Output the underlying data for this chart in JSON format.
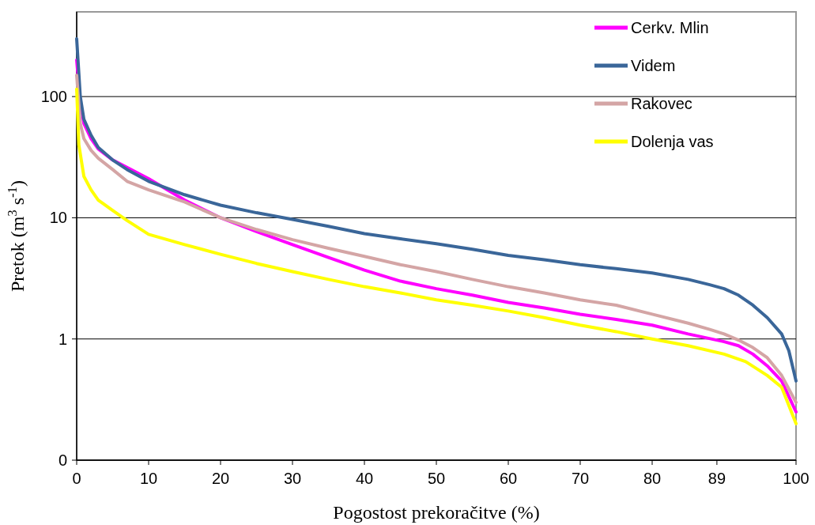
{
  "chart_data": {
    "type": "line",
    "xlabel": "Pogostost prekoračitve (%)",
    "ylabel": "Pretok  (m$^{3}$ s$^{-1}$)",
    "log": "y",
    "xlim": [
      0,
      100
    ],
    "xticks": [
      0,
      10,
      20,
      30,
      40,
      50,
      60,
      70,
      80,
      89,
      100
    ],
    "ylim": [
      0.1,
      500
    ],
    "yticks": [
      {
        "value": 0.1,
        "label": "0"
      },
      1,
      10,
      100
    ],
    "grid": "y",
    "legend": "top right",
    "line_style": "solid",
    "marker": "none",
    "series": [
      {
        "name": "Cerkv. Mlin",
        "color": "#ff00ff",
        "x": [
          0,
          0.5,
          1,
          2,
          3,
          5,
          7,
          10,
          15,
          20,
          25,
          30,
          35,
          40,
          45,
          50,
          55,
          60,
          65,
          70,
          75,
          80,
          85,
          90,
          92,
          94,
          96,
          98,
          100
        ],
        "values": [
          200,
          90,
          60,
          45,
          37,
          30,
          26,
          21,
          14,
          10,
          7.7,
          6,
          4.7,
          3.7,
          3,
          2.6,
          2.3,
          2,
          1.8,
          1.6,
          1.45,
          1.3,
          1.1,
          0.95,
          0.88,
          0.75,
          0.6,
          0.45,
          0.25
        ]
      },
      {
        "name": "Videm",
        "color": "#3a6699",
        "x": [
          0,
          0.5,
          1,
          2,
          3,
          5,
          7,
          10,
          15,
          20,
          25,
          30,
          35,
          40,
          45,
          50,
          55,
          60,
          65,
          70,
          75,
          80,
          85,
          88,
          90,
          92,
          94,
          96,
          98,
          99,
          100
        ],
        "values": [
          300,
          100,
          65,
          48,
          38,
          30,
          25,
          20,
          15.5,
          12.7,
          11,
          9.7,
          8.5,
          7.4,
          6.7,
          6.1,
          5.5,
          4.9,
          4.5,
          4.1,
          3.8,
          3.5,
          3.1,
          2.8,
          2.6,
          2.3,
          1.9,
          1.5,
          1.1,
          0.8,
          0.45
        ]
      },
      {
        "name": "Rakovec",
        "color": "#d4a5a5",
        "x": [
          0,
          0.5,
          1,
          2,
          3,
          5,
          7,
          10,
          15,
          20,
          25,
          30,
          35,
          40,
          45,
          50,
          55,
          60,
          65,
          70,
          75,
          80,
          85,
          88,
          90,
          92,
          94,
          96,
          98,
          100
        ],
        "values": [
          150,
          60,
          45,
          36,
          31,
          25,
          20,
          17,
          13.5,
          10,
          8,
          6.6,
          5.6,
          4.8,
          4.1,
          3.6,
          3.1,
          2.7,
          2.4,
          2.1,
          1.9,
          1.6,
          1.35,
          1.2,
          1.1,
          0.98,
          0.85,
          0.7,
          0.5,
          0.3
        ]
      },
      {
        "name": "Dolenja vas",
        "color": "#ffff00",
        "x": [
          0,
          0.3,
          1,
          2,
          3,
          5,
          7,
          10,
          15,
          20,
          25,
          30,
          35,
          40,
          45,
          50,
          55,
          60,
          65,
          70,
          75,
          80,
          85,
          90,
          93,
          96,
          98,
          100
        ],
        "values": [
          115,
          40,
          22,
          17,
          14,
          11.5,
          9.5,
          7.3,
          6,
          5,
          4.2,
          3.6,
          3.1,
          2.7,
          2.4,
          2.1,
          1.9,
          1.7,
          1.5,
          1.3,
          1.15,
          1,
          0.88,
          0.75,
          0.65,
          0.5,
          0.4,
          0.2
        ]
      }
    ]
  }
}
